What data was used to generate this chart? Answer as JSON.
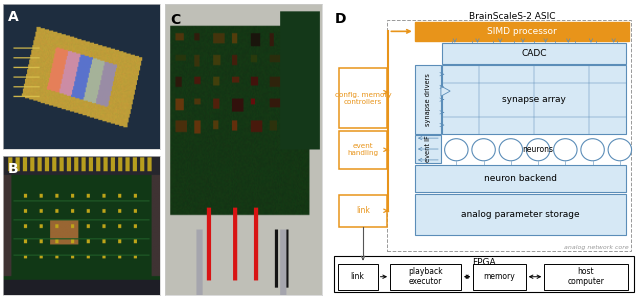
{
  "fig_width": 6.4,
  "fig_height": 2.98,
  "bg_color": "#ffffff",
  "orange": "#E8941A",
  "blue": "#5B8DB8",
  "light_blue_fill": "#D6E8F5",
  "gray_dashed": "#999999",
  "title_asic": "BrainScaleS-2 ASIC",
  "simd_label": "SIMD processor",
  "cadc_label": "CADC",
  "synapse_array_label": "synapse array",
  "synapse_drivers_label": "synapse drivers",
  "neuron_backend_label": "neuron backend",
  "analog_param_label": "analog parameter storage",
  "analog_core_label": "analog network core",
  "neurons_label": "neurons",
  "event_if_label": "event IF",
  "config_mem_label": "config. memory\ncontrollers",
  "event_handling_label": "event\nhandling",
  "link_label": "link",
  "fpga_label": "FPGA",
  "fpga_link_label": "link",
  "fpga_playback_label": "playback\nexecutor",
  "fpga_memory_label": "memory",
  "fpga_host_label": "host\ncomputer",
  "panel_A_label": "A",
  "panel_B_label": "B",
  "panel_C_label": "C",
  "panel_D_label": "D"
}
